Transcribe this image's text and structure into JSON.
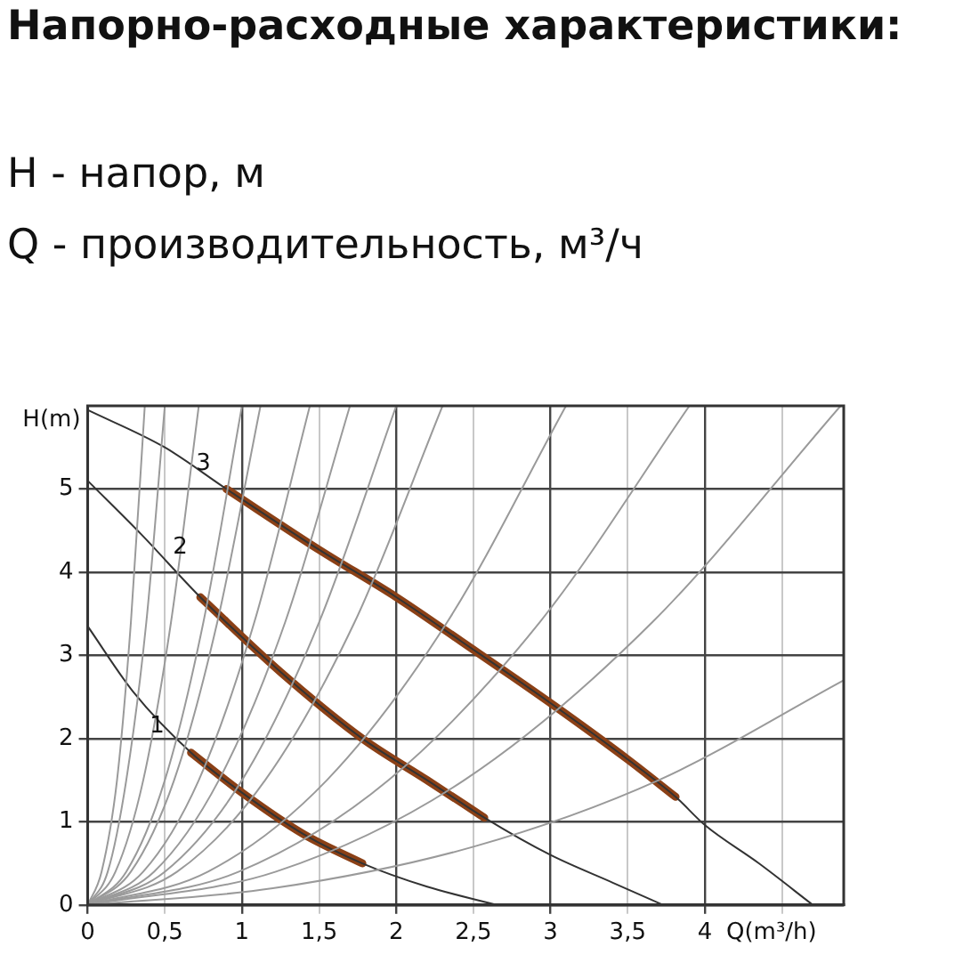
{
  "chart_data": {
    "type": "line",
    "title": "Напорно-расходные характеристики:",
    "subtitle": "H - напор, м\nQ - производительность, м³/ч",
    "xlabel": "Q(m³/h)",
    "ylabel": "H(m)",
    "xlim": [
      0,
      4.9
    ],
    "ylim": [
      0,
      6
    ],
    "xticks": [
      0,
      {
        "value": 0.5,
        "label": "0,5"
      },
      1,
      {
        "value": 1.5,
        "label": "1,5"
      },
      2,
      {
        "value": 2.5,
        "label": "2,5"
      },
      3,
      {
        "value": 3.5,
        "label": "3,5"
      },
      4,
      {
        "value": 4.5,
        "label": null
      }
    ],
    "yticks": [
      0,
      1,
      2,
      3,
      4,
      5
    ],
    "grid": true,
    "legend": false,
    "marker": "none",
    "line_style": "solid",
    "annotations": [
      {
        "text": "3",
        "x": 0.75,
        "y": 5.3
      },
      {
        "text": "2",
        "x": 0.6,
        "y": 4.3
      },
      {
        "text": "1",
        "x": 0.45,
        "y": 2.15
      }
    ],
    "series": [
      {
        "color": "#9a9a9a",
        "x": [
          0,
          0.09,
          0.19,
          0.28,
          0.37
        ],
        "values": [
          0,
          0.4,
          1.5,
          3.4,
          6
        ]
      },
      {
        "color": "#9a9a9a",
        "x": [
          0,
          0.13,
          0.25,
          0.38,
          0.5
        ],
        "values": [
          0,
          0.4,
          1.5,
          3.4,
          6
        ]
      },
      {
        "color": "#9a9a9a",
        "x": [
          0,
          0.18,
          0.36,
          0.54,
          0.72
        ],
        "values": [
          0,
          0.4,
          1.5,
          3.4,
          6
        ]
      },
      {
        "color": "#9a9a9a",
        "x": [
          0,
          0.25,
          0.5,
          0.75,
          1.0
        ],
        "values": [
          0,
          0.4,
          1.5,
          3.4,
          6
        ]
      },
      {
        "color": "#9a9a9a",
        "x": [
          0,
          0.28,
          0.56,
          0.84,
          1.12
        ],
        "values": [
          0,
          0.4,
          1.5,
          3.4,
          6
        ]
      },
      {
        "color": "#9a9a9a",
        "x": [
          0,
          0.36,
          0.72,
          1.08,
          1.44
        ],
        "values": [
          0,
          0.4,
          1.5,
          3.4,
          6
        ]
      },
      {
        "color": "#9a9a9a",
        "x": [
          0,
          0.43,
          0.85,
          1.28,
          1.7
        ],
        "values": [
          0,
          0.4,
          1.5,
          3.4,
          6
        ]
      },
      {
        "color": "#9a9a9a",
        "x": [
          0,
          0.5,
          1,
          1.5,
          2
        ],
        "values": [
          0,
          0.4,
          1.5,
          3.4,
          6
        ]
      },
      {
        "color": "#9a9a9a",
        "x": [
          0,
          0.58,
          1.15,
          1.73,
          2.3
        ],
        "values": [
          0,
          0.4,
          1.5,
          3.4,
          6
        ]
      },
      {
        "color": "#9a9a9a",
        "x": [
          0,
          0.78,
          1.55,
          2.33,
          3.1
        ],
        "values": [
          0,
          0.4,
          1.5,
          3.4,
          6
        ]
      },
      {
        "color": "#9a9a9a",
        "x": [
          0,
          0.98,
          1.95,
          2.93,
          3.9
        ],
        "values": [
          0,
          0.4,
          1.5,
          3.4,
          6
        ]
      },
      {
        "color": "#9a9a9a",
        "x": [
          0,
          1.22,
          2.44,
          3.66,
          4.88
        ],
        "values": [
          0,
          0.4,
          1.5,
          3.4,
          6
        ]
      },
      {
        "color": "#9a9a9a",
        "x": [
          0,
          1.2,
          2.5,
          3.7,
          4.9
        ],
        "values": [
          0,
          0.2,
          0.7,
          1.5,
          2.7
        ]
      },
      {
        "color": "#333333",
        "x": [
          0,
          0.5,
          0.9,
          1.5,
          2.0,
          2.42,
          3.02,
          3.5,
          3.81,
          4.0,
          4.35,
          4.7
        ],
        "values": [
          5.95,
          5.5,
          5.0,
          4.27,
          3.7,
          3.17,
          2.4,
          1.75,
          1.3,
          0.96,
          0.5,
          0
        ]
      },
      {
        "color": "#333333",
        "x": [
          0,
          0.35,
          0.73,
          1.25,
          1.78,
          2.2,
          2.57,
          3.0,
          3.4,
          3.73
        ],
        "values": [
          5.1,
          4.45,
          3.7,
          2.8,
          2.0,
          1.5,
          1.05,
          0.6,
          0.27,
          0
        ]
      },
      {
        "color": "#333333",
        "x": [
          0,
          0.3,
          0.67,
          1.0,
          1.4,
          1.78,
          2.2,
          2.65
        ],
        "values": [
          3.35,
          2.55,
          1.83,
          1.35,
          0.85,
          0.5,
          0.22,
          0
        ]
      },
      {
        "color": "#8b4016",
        "x": [
          0.9,
          1.5,
          2.0,
          2.42,
          3.02,
          3.5,
          3.81
        ],
        "values": [
          5.0,
          4.27,
          3.7,
          3.17,
          2.4,
          1.75,
          1.3
        ]
      },
      {
        "color": "#8b4016",
        "x": [
          0.73,
          1.25,
          1.78,
          2.2,
          2.57
        ],
        "values": [
          3.7,
          2.8,
          2.0,
          1.5,
          1.05
        ]
      },
      {
        "color": "#8b4016",
        "x": [
          0.67,
          1.0,
          1.4,
          1.78
        ],
        "values": [
          1.83,
          1.35,
          0.85,
          0.5
        ]
      }
    ]
  }
}
